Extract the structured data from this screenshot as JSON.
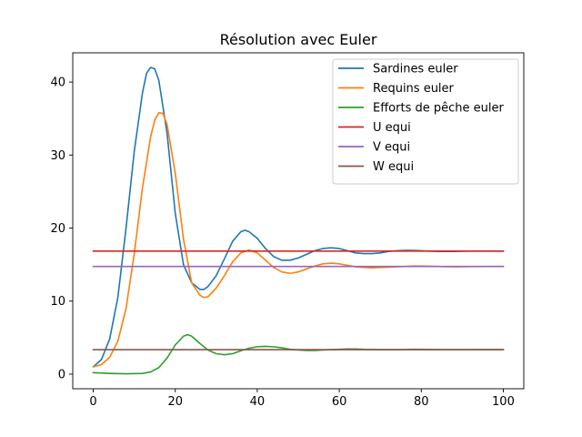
{
  "chart_data": {
    "type": "line",
    "title": "Résolution avec Euler",
    "xlabel": "",
    "ylabel": "",
    "xlim": [
      -5,
      105
    ],
    "ylim": [
      -2,
      44
    ],
    "xticks": [
      0,
      20,
      40,
      60,
      80,
      100
    ],
    "yticks": [
      0,
      10,
      20,
      30,
      40
    ],
    "xtick_labels": [
      "0",
      "20",
      "40",
      "60",
      "80",
      "100"
    ],
    "ytick_labels": [
      "0",
      "10",
      "20",
      "30",
      "40"
    ],
    "grid": false,
    "legend_position": "top-right",
    "series": [
      {
        "name": "Sardines euler",
        "color": "#1f77b4",
        "points": [
          [
            0,
            1.0
          ],
          [
            2,
            2.0
          ],
          [
            4,
            4.8
          ],
          [
            6,
            10.5
          ],
          [
            8,
            20.0
          ],
          [
            10,
            30.5
          ],
          [
            12,
            38.5
          ],
          [
            13,
            41.2
          ],
          [
            14,
            42.0
          ],
          [
            15,
            41.8
          ],
          [
            16,
            40.2
          ],
          [
            18,
            33.0
          ],
          [
            20,
            22.0
          ],
          [
            22,
            15.0
          ],
          [
            24,
            12.5
          ],
          [
            26,
            11.6
          ],
          [
            27,
            11.6
          ],
          [
            28,
            12.0
          ],
          [
            30,
            13.5
          ],
          [
            32,
            15.8
          ],
          [
            34,
            18.2
          ],
          [
            36,
            19.5
          ],
          [
            37,
            19.7
          ],
          [
            38,
            19.5
          ],
          [
            40,
            18.6
          ],
          [
            42,
            17.2
          ],
          [
            44,
            16.1
          ],
          [
            46,
            15.6
          ],
          [
            48,
            15.6
          ],
          [
            50,
            15.9
          ],
          [
            52,
            16.4
          ],
          [
            54,
            16.9
          ],
          [
            56,
            17.2
          ],
          [
            58,
            17.3
          ],
          [
            60,
            17.2
          ],
          [
            62,
            16.9
          ],
          [
            64,
            16.6
          ],
          [
            66,
            16.5
          ],
          [
            68,
            16.5
          ],
          [
            70,
            16.6
          ],
          [
            72,
            16.8
          ],
          [
            74,
            16.9
          ],
          [
            76,
            16.95
          ],
          [
            78,
            16.95
          ],
          [
            80,
            16.9
          ],
          [
            84,
            16.8
          ],
          [
            88,
            16.8
          ],
          [
            92,
            16.85
          ],
          [
            96,
            16.85
          ],
          [
            100,
            16.85
          ]
        ]
      },
      {
        "name": "Requins euler",
        "color": "#ff7f0e",
        "points": [
          [
            0,
            1.0
          ],
          [
            2,
            1.3
          ],
          [
            4,
            2.3
          ],
          [
            6,
            4.5
          ],
          [
            8,
            9.0
          ],
          [
            10,
            16.5
          ],
          [
            12,
            25.5
          ],
          [
            14,
            32.5
          ],
          [
            15,
            34.8
          ],
          [
            16,
            35.8
          ],
          [
            17,
            35.7
          ],
          [
            18,
            34.2
          ],
          [
            20,
            27.5
          ],
          [
            22,
            18.5
          ],
          [
            24,
            12.5
          ],
          [
            26,
            10.8
          ],
          [
            27,
            10.5
          ],
          [
            28,
            10.6
          ],
          [
            30,
            11.8
          ],
          [
            32,
            13.5
          ],
          [
            34,
            15.4
          ],
          [
            36,
            16.6
          ],
          [
            38,
            17.0
          ],
          [
            40,
            16.6
          ],
          [
            42,
            15.6
          ],
          [
            44,
            14.6
          ],
          [
            46,
            14.0
          ],
          [
            48,
            13.8
          ],
          [
            50,
            14.0
          ],
          [
            52,
            14.4
          ],
          [
            54,
            14.8
          ],
          [
            56,
            15.1
          ],
          [
            58,
            15.2
          ],
          [
            60,
            15.1
          ],
          [
            62,
            14.9
          ],
          [
            64,
            14.7
          ],
          [
            66,
            14.6
          ],
          [
            68,
            14.55
          ],
          [
            70,
            14.6
          ],
          [
            72,
            14.65
          ],
          [
            74,
            14.7
          ],
          [
            76,
            14.75
          ],
          [
            78,
            14.8
          ],
          [
            80,
            14.8
          ],
          [
            84,
            14.75
          ],
          [
            88,
            14.7
          ],
          [
            92,
            14.72
          ],
          [
            96,
            14.74
          ],
          [
            100,
            14.75
          ]
        ]
      },
      {
        "name": "Efforts de pêche euler",
        "color": "#2ca02c",
        "points": [
          [
            0,
            0.2
          ],
          [
            4,
            0.1
          ],
          [
            8,
            0.05
          ],
          [
            12,
            0.1
          ],
          [
            14,
            0.3
          ],
          [
            16,
            0.9
          ],
          [
            18,
            2.2
          ],
          [
            20,
            4.0
          ],
          [
            22,
            5.2
          ],
          [
            23,
            5.4
          ],
          [
            24,
            5.2
          ],
          [
            26,
            4.2
          ],
          [
            28,
            3.3
          ],
          [
            30,
            2.8
          ],
          [
            32,
            2.65
          ],
          [
            34,
            2.8
          ],
          [
            36,
            3.2
          ],
          [
            38,
            3.55
          ],
          [
            40,
            3.75
          ],
          [
            42,
            3.8
          ],
          [
            44,
            3.75
          ],
          [
            46,
            3.6
          ],
          [
            48,
            3.4
          ],
          [
            50,
            3.3
          ],
          [
            52,
            3.25
          ],
          [
            54,
            3.25
          ],
          [
            56,
            3.3
          ],
          [
            58,
            3.35
          ],
          [
            60,
            3.4
          ],
          [
            62,
            3.45
          ],
          [
            64,
            3.45
          ],
          [
            66,
            3.4
          ],
          [
            70,
            3.35
          ],
          [
            74,
            3.35
          ],
          [
            78,
            3.4
          ],
          [
            82,
            3.38
          ],
          [
            86,
            3.36
          ],
          [
            90,
            3.36
          ],
          [
            95,
            3.37
          ],
          [
            100,
            3.37
          ]
        ]
      },
      {
        "name": "U equi",
        "color": "#d62728",
        "points": [
          [
            0,
            16.85
          ],
          [
            100,
            16.85
          ]
        ]
      },
      {
        "name": "V equi",
        "color": "#9467bd",
        "points": [
          [
            0,
            14.75
          ],
          [
            100,
            14.75
          ]
        ]
      },
      {
        "name": "W equi",
        "color": "#8c564b",
        "points": [
          [
            0,
            3.35
          ],
          [
            100,
            3.35
          ]
        ]
      }
    ]
  }
}
